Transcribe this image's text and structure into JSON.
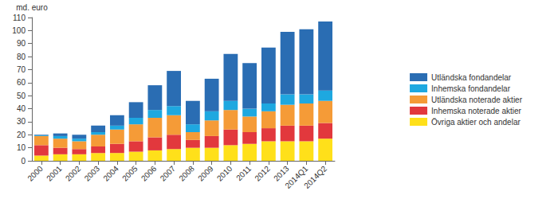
{
  "chart_data": {
    "type": "bar",
    "stacked": true,
    "ylabel": "md. euro",
    "categories": [
      "2000",
      "2001",
      "2002",
      "2003",
      "2004",
      "2005",
      "2006",
      "2007",
      "2008",
      "2009",
      "2010",
      "2011",
      "2012",
      "2013",
      "2014Q1",
      "2014Q2"
    ],
    "series": [
      {
        "name": "Övriga aktier och andelar",
        "color": "#ffe01a",
        "values": [
          4,
          5,
          5,
          6,
          6,
          7,
          8,
          9,
          10,
          10,
          12,
          13,
          15,
          15,
          15,
          17
        ]
      },
      {
        "name": "Inhemska noterade aktier",
        "color": "#e2383d",
        "values": [
          8,
          5,
          4,
          5,
          7,
          8,
          10,
          11,
          6,
          9,
          12,
          9,
          10,
          12,
          12,
          12
        ]
      },
      {
        "name": "Utländska noterade aktier",
        "color": "#f59b37",
        "values": [
          7,
          7,
          6,
          9,
          11,
          13,
          15,
          15,
          6,
          12,
          15,
          12,
          13,
          16,
          17,
          17
        ]
      },
      {
        "name": "Inhemska fondandelar",
        "color": "#1ea8e0",
        "values": [
          0.5,
          2,
          2,
          2,
          3,
          5,
          6,
          7,
          6,
          7,
          7,
          6,
          6,
          8,
          7,
          8
        ]
      },
      {
        "name": "Utländska fondandelar",
        "color": "#2a6db3",
        "values": [
          0.5,
          2,
          3,
          5,
          8,
          12,
          19,
          27,
          18,
          25,
          36,
          35,
          43,
          48,
          50,
          53
        ]
      }
    ],
    "ylim": [
      0,
      110
    ],
    "yticks": [
      0,
      10,
      20,
      30,
      40,
      50,
      60,
      70,
      80,
      90,
      100,
      110
    ],
    "grid": false,
    "legend": "right"
  }
}
